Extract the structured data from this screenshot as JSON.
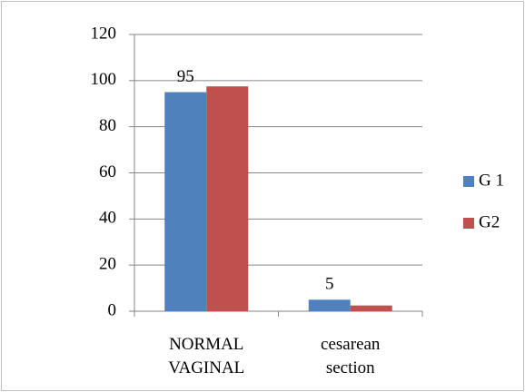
{
  "chart_data": {
    "type": "bar",
    "categories": [
      "NORMAL VAGINAL",
      "cesarean section"
    ],
    "series": [
      {
        "name": "G 1",
        "color": "#4f81bd",
        "values": [
          95,
          5
        ],
        "show_labels": true
      },
      {
        "name": "G2",
        "color": "#c0504d",
        "values": [
          97.5,
          2.5
        ],
        "show_labels": false
      }
    ],
    "ylim": [
      0,
      120
    ],
    "yticks": [
      0,
      20,
      40,
      60,
      80,
      100,
      120
    ],
    "grid": true,
    "legend": "right"
  }
}
